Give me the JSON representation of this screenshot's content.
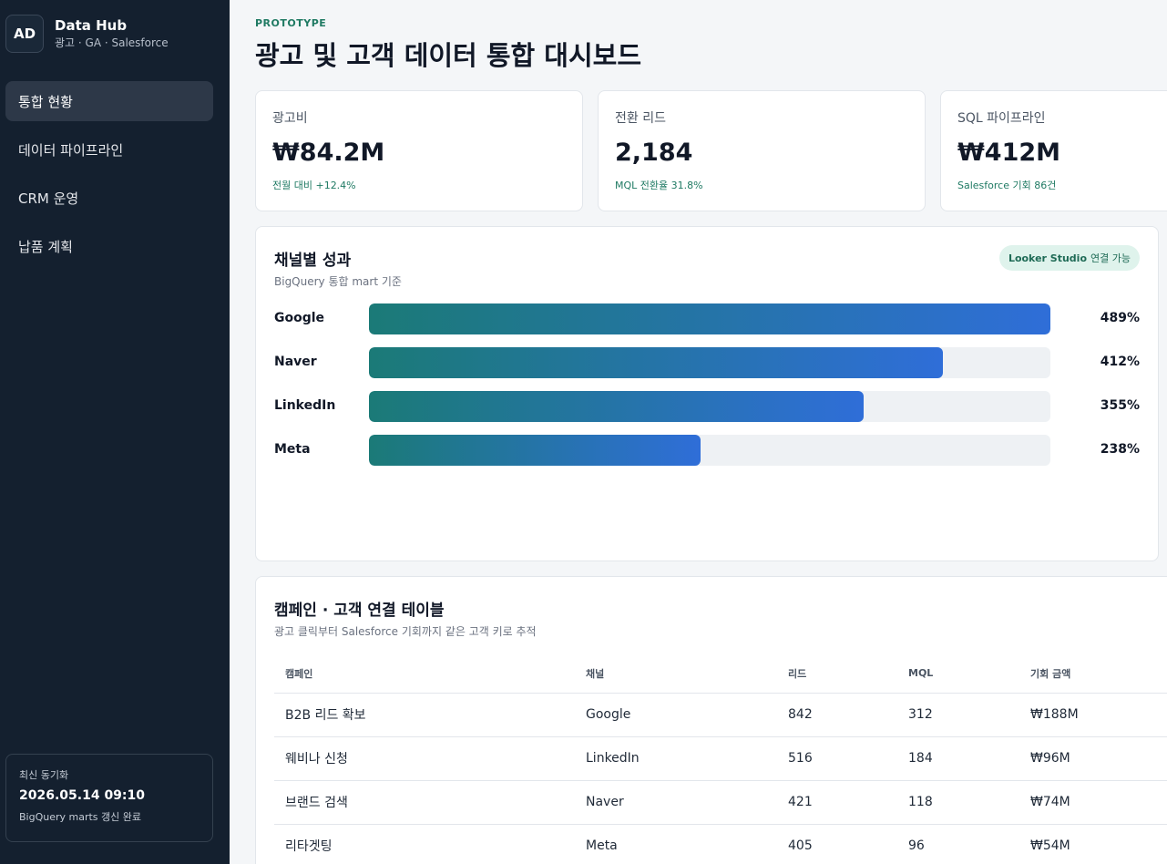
{
  "brand": {
    "logo": "AD",
    "title": "Data Hub",
    "subtitle": "광고 · GA · Salesforce"
  },
  "nav": [
    {
      "label": "통합 현황",
      "active": true
    },
    {
      "label": "데이터 파이프라인",
      "active": false
    },
    {
      "label": "CRM 운영",
      "active": false
    },
    {
      "label": "납품 계획",
      "active": false
    }
  ],
  "sync": {
    "label": "최신 동기화",
    "time": "2026.05.14 09:10",
    "note": "BigQuery marts 갱신 완료"
  },
  "header": {
    "eyebrow": "PROTOTYPE",
    "title": "광고 및 고객 데이터 통합 대시보드"
  },
  "kpis": [
    {
      "label": "광고비",
      "value": "₩84.2M",
      "sub": "전월 대비 +12.4%"
    },
    {
      "label": "전환 리드",
      "value": "2,184",
      "sub": "MQL 전환율 31.8%"
    },
    {
      "label": "SQL 파이프라인",
      "value": "₩412M",
      "sub": "Salesforce 기회 86건"
    }
  ],
  "channel_card": {
    "title": "채널별 성과",
    "subtitle": "BigQuery 통합 mart 기준",
    "badge_strong": "Looker Studio",
    "badge_rest": "연결 가능"
  },
  "chart_data": {
    "type": "bar",
    "orientation": "horizontal",
    "categories": [
      "Google",
      "Naver",
      "LinkedIn",
      "Meta"
    ],
    "values": [
      489,
      412,
      355,
      238
    ],
    "value_labels": [
      "489%",
      "412%",
      "355%",
      "238%"
    ],
    "xlim": [
      0,
      489
    ],
    "grid": false
  },
  "table_card": {
    "title": "캠페인 · 고객 연결 테이블",
    "subtitle": "광고 클릭부터 Salesforce 기회까지 같은 고객 키로 추적",
    "columns": [
      "캠페인",
      "채널",
      "리드",
      "MQL",
      "기회 금액"
    ],
    "rows": [
      [
        "B2B 리드 확보",
        "Google",
        "842",
        "312",
        "₩188M"
      ],
      [
        "웨비나 신청",
        "LinkedIn",
        "516",
        "184",
        "₩96M"
      ],
      [
        "브랜드 검색",
        "Naver",
        "421",
        "118",
        "₩74M"
      ],
      [
        "리타겟팅",
        "Meta",
        "405",
        "96",
        "₩54M"
      ]
    ]
  },
  "colors": {
    "sidebar": "#14202f",
    "accent": "#1f7a63",
    "bar_start": "#1b7a77",
    "bar_end": "#2f6ed8"
  }
}
